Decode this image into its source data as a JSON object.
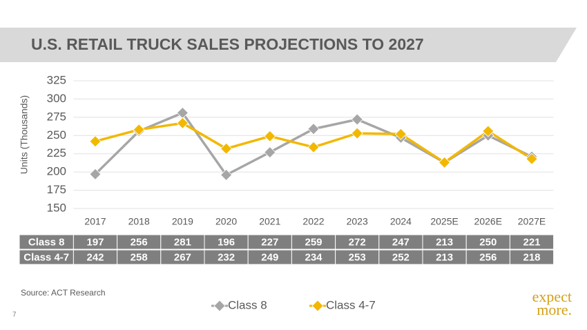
{
  "chart_data": {
    "type": "line",
    "title": "U.S. RETAIL TRUCK SALES PROJECTIONS TO 2027",
    "y_label": "Units (Thousands)",
    "categories": [
      "2017",
      "2018",
      "2019",
      "2020",
      "2021",
      "2022",
      "2023",
      "2024",
      "2025E",
      "2026E",
      "2027E"
    ],
    "series": [
      {
        "name": "Class 8",
        "color": "#a6a6a6",
        "values": [
          197,
          256,
          281,
          196,
          227,
          259,
          272,
          247,
          213,
          250,
          221
        ]
      },
      {
        "name": "Class 4-7",
        "color": "#f2b800",
        "values": [
          242,
          258,
          267,
          232,
          249,
          234,
          253,
          252,
          213,
          256,
          218
        ]
      }
    ],
    "ylim": [
      150,
      325
    ],
    "yticks": [
      150,
      175,
      200,
      225,
      250,
      275,
      300,
      325
    ],
    "grid": true,
    "source": "Source:  ACT Research"
  },
  "footer": {
    "page_number": "7",
    "logo_line1": "expect",
    "logo_line2": "more."
  }
}
